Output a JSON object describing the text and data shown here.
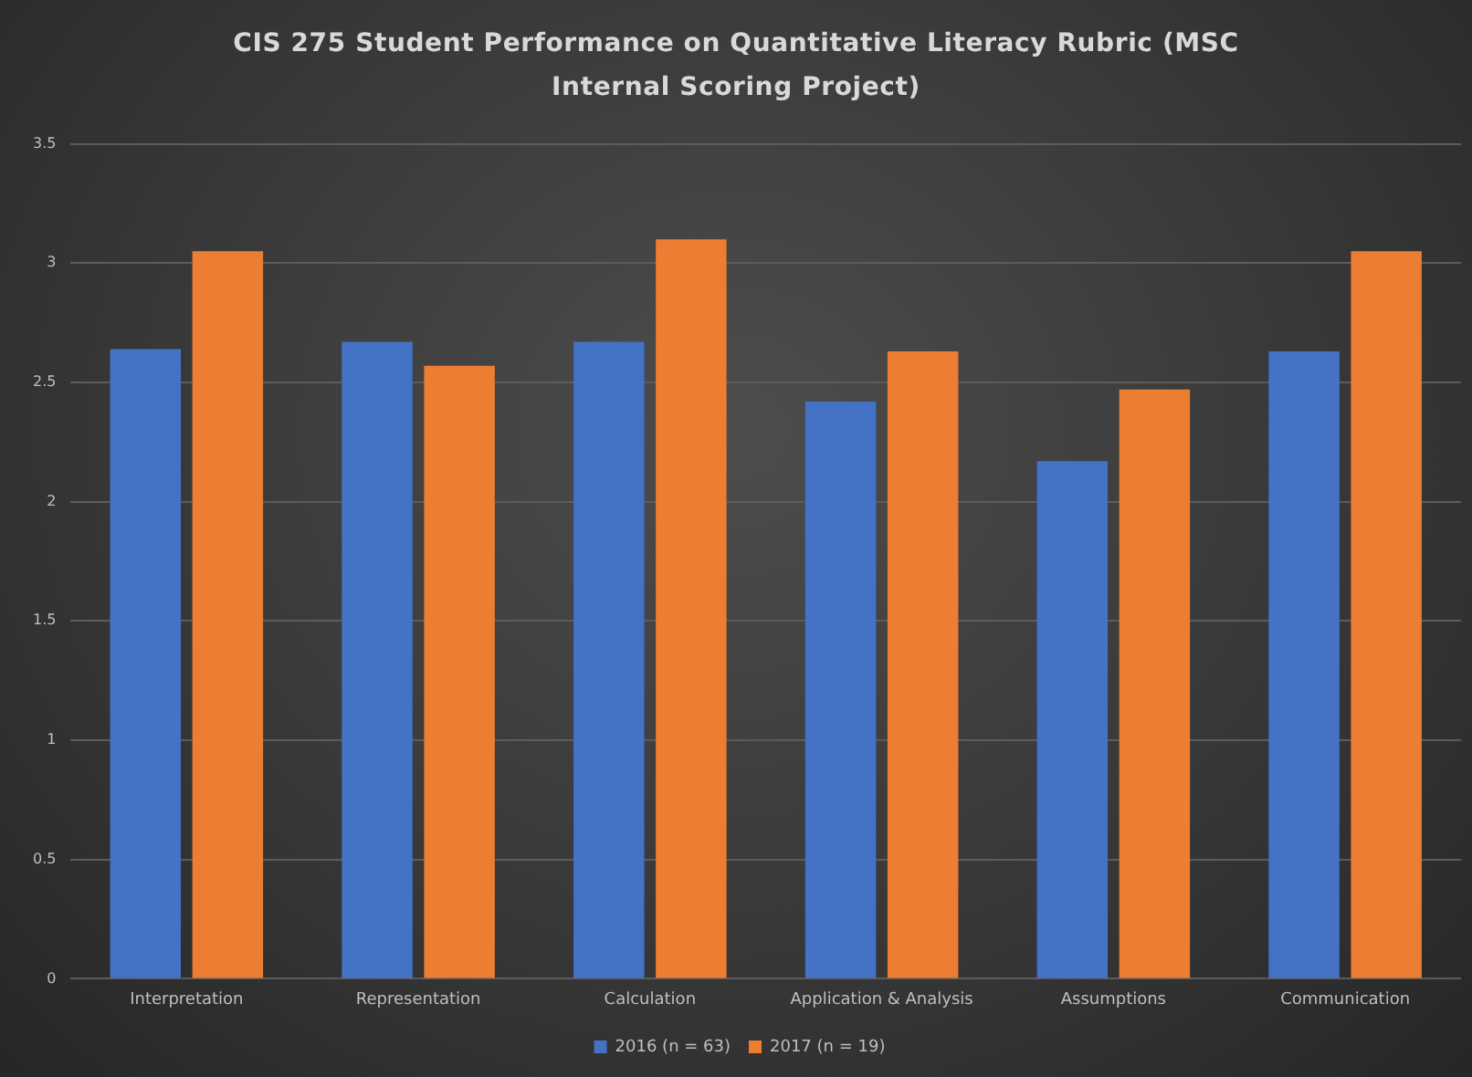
{
  "chart_data": {
    "type": "bar",
    "title": "CIS 275 Student Performance on Quantitative Literacy Rubric (MSC Internal Scoring Project)",
    "categories": [
      "Interpretation",
      "Representation",
      "Calculation",
      "Application & Analysis",
      "Assumptions",
      "Communication"
    ],
    "series": [
      {
        "name": "2016 (n = 63)",
        "color": "#4472c4",
        "values": [
          2.64,
          2.67,
          2.67,
          2.42,
          2.17,
          2.63
        ]
      },
      {
        "name": "2017 (n = 19)",
        "color": "#ed7d31",
        "values": [
          3.05,
          2.57,
          3.1,
          2.63,
          2.47,
          3.05
        ]
      }
    ],
    "ylim": [
      0,
      3.5
    ],
    "yticks": [
      0,
      0.5,
      1,
      1.5,
      2,
      2.5,
      3,
      3.5
    ],
    "grid": "y",
    "legend": "bottom"
  }
}
